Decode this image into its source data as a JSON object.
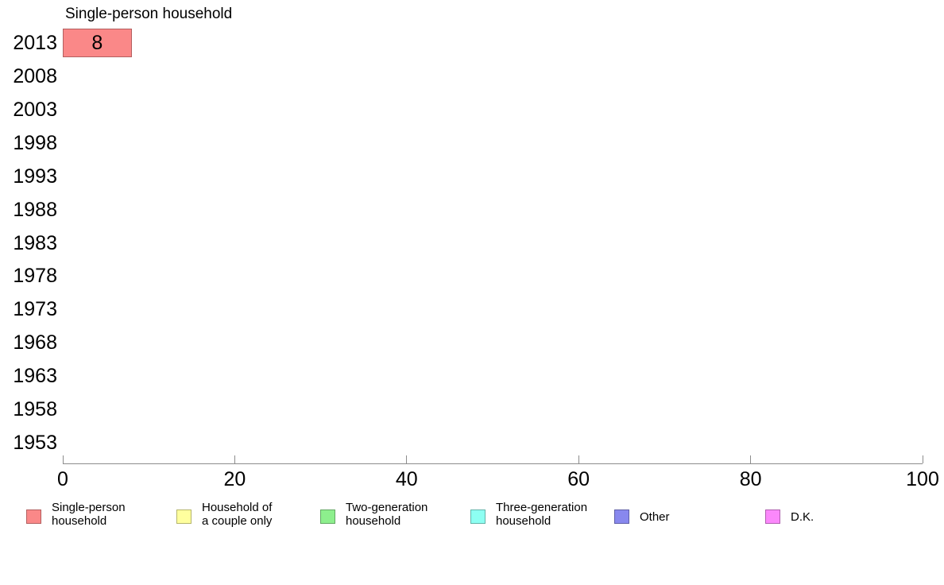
{
  "chart_data": {
    "type": "bar",
    "orientation": "horizontal",
    "title": "Single-person household",
    "categories": [
      "2013",
      "2008",
      "2003",
      "1998",
      "1993",
      "1988",
      "1983",
      "1978",
      "1973",
      "1968",
      "1963",
      "1958",
      "1953"
    ],
    "values": [
      8,
      null,
      null,
      null,
      null,
      null,
      null,
      null,
      null,
      null,
      null,
      null,
      null
    ],
    "xlim": [
      0,
      100
    ],
    "xticks": [
      "0",
      "20",
      "40",
      "60",
      "80",
      "100"
    ],
    "grid": false,
    "bar_color": "#FA8888",
    "bar_border_color": "#B35F5F",
    "axis_color": "#8C8C8C",
    "legend_position": "bottom",
    "legend": [
      {
        "label": "Single-person household",
        "label_lines": [
          "Single-person",
          "household"
        ],
        "color": "#FA8888",
        "border": "#B35F5F"
      },
      {
        "label": "Household of a couple only",
        "label_lines": [
          "Household of",
          "a couple only"
        ],
        "color": "#FFFF9E",
        "border": "#B5B56B"
      },
      {
        "label": "Two-generation household",
        "label_lines": [
          "Two-generation",
          "household"
        ],
        "color": "#8DEF8D",
        "border": "#63A763"
      },
      {
        "label": "Three-generation household",
        "label_lines": [
          "Three-generation",
          "household"
        ],
        "color": "#8DFFF2",
        "border": "#63B3A9"
      },
      {
        "label": "Other",
        "label_lines": [
          "Other"
        ],
        "color": "#8888EE",
        "border": "#5F5FA7"
      },
      {
        "label": "D.K.",
        "label_lines": [
          "D.K."
        ],
        "color": "#FB88FB",
        "border": "#B05FB0"
      }
    ]
  }
}
